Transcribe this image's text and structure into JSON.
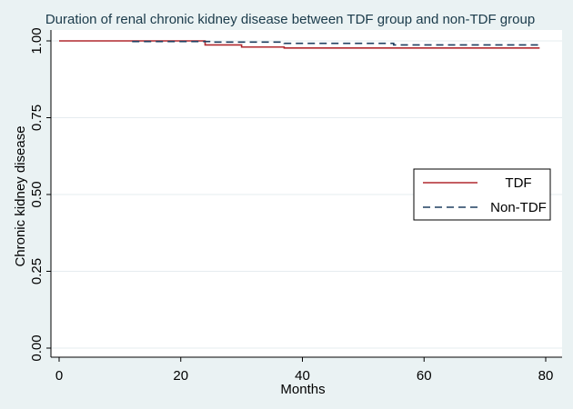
{
  "chart_data": {
    "type": "line",
    "title": "Duration of renal chronic kidney disease between TDF group and non-TDF group",
    "xlabel": "Months",
    "ylabel": "Chronic kidney disease",
    "xlim": [
      0,
      80
    ],
    "ylim": [
      0,
      1
    ],
    "xticks": [
      "0",
      "20",
      "40",
      "60",
      "80"
    ],
    "yticks": [
      "0.00",
      "0.25",
      "0.50",
      "0.75",
      "1.00"
    ],
    "xtick_values": [
      0,
      20,
      40,
      60,
      80
    ],
    "ytick_values": [
      0,
      0.25,
      0.5,
      0.75,
      1.0
    ],
    "grid": true,
    "legend_position": "right",
    "step": true,
    "series": [
      {
        "name": "TDF",
        "color": "#b0282e",
        "style": "solid",
        "x": [
          0,
          24,
          30,
          37,
          79
        ],
        "y": [
          1.0,
          0.987,
          0.98,
          0.977,
          0.977
        ]
      },
      {
        "name": "Non-TDF",
        "color": "#1f3f60",
        "style": "dashed",
        "x": [
          12,
          25,
          37,
          55,
          79
        ],
        "y": [
          0.998,
          0.996,
          0.992,
          0.987,
          0.987
        ]
      }
    ]
  }
}
